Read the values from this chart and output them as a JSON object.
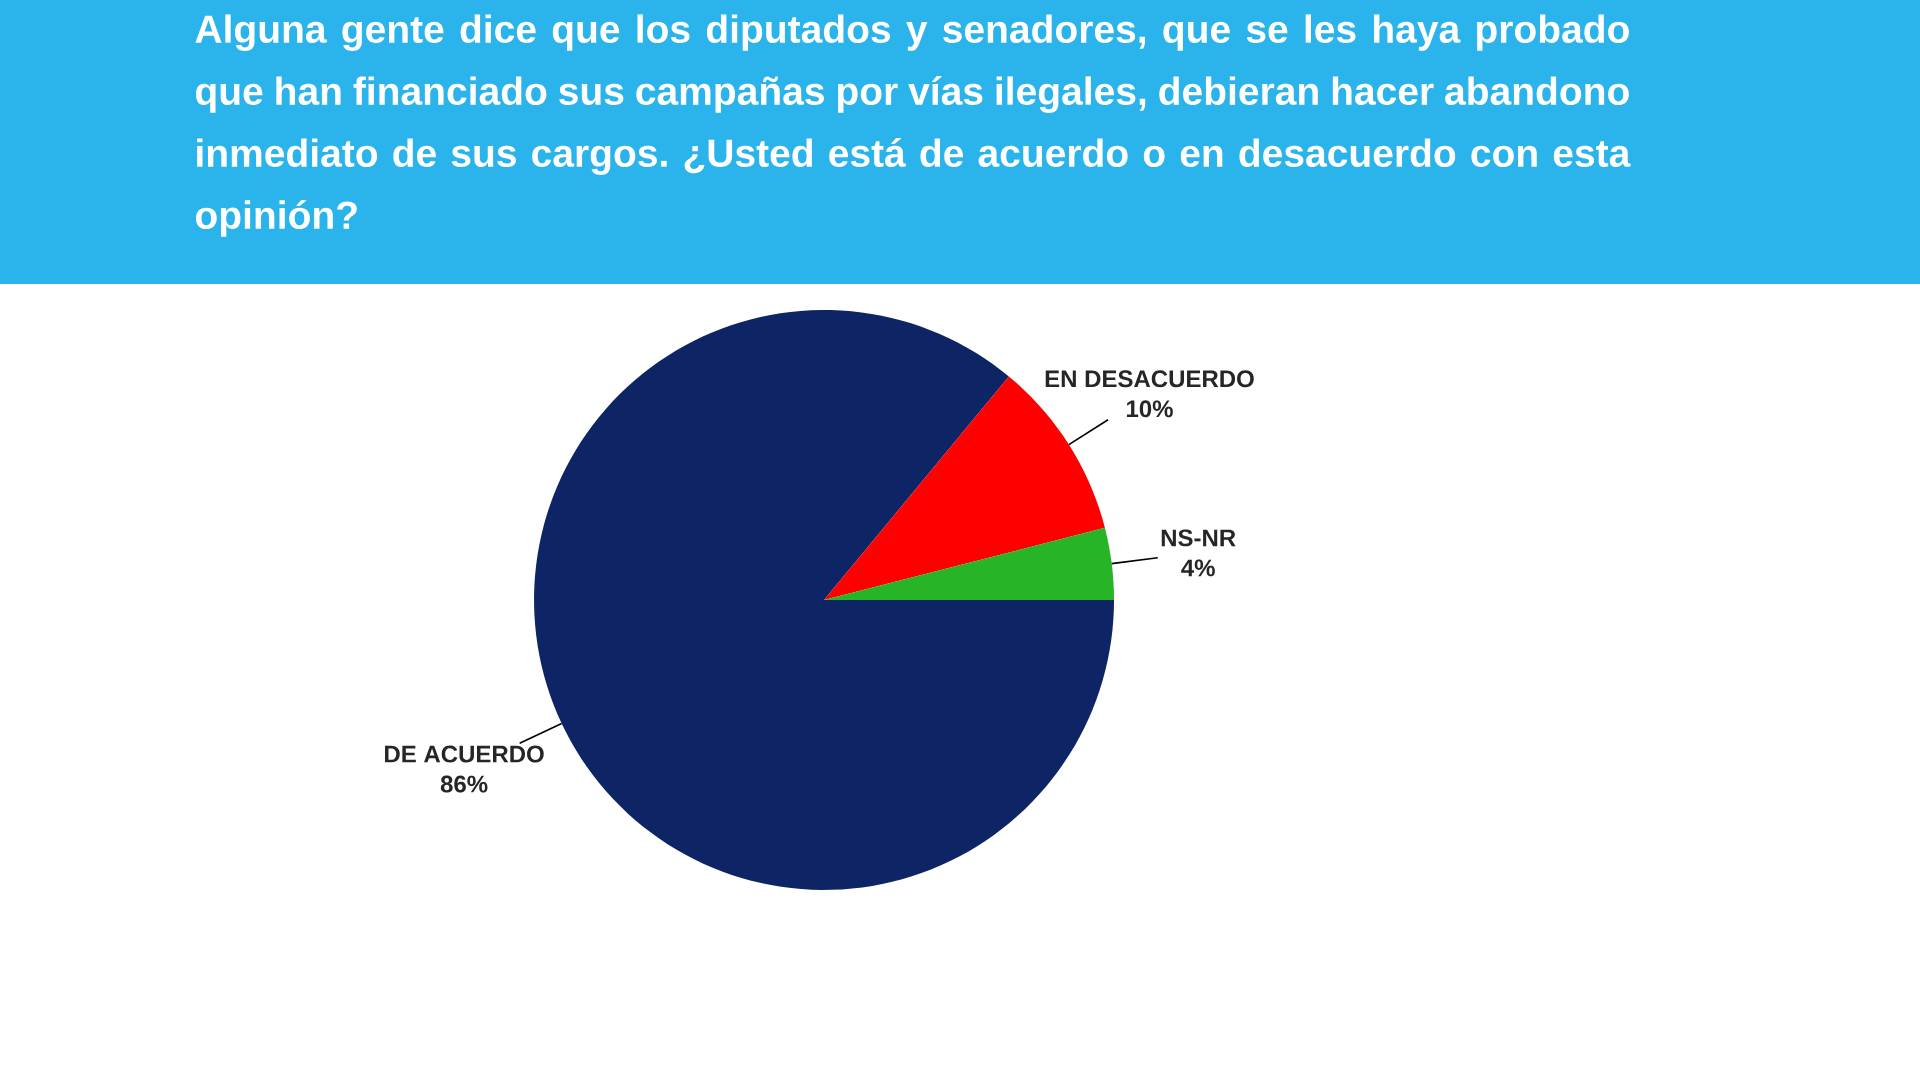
{
  "chart_data": {
    "type": "pie",
    "title": "Alguna gente dice que los diputados y senadores, que se les haya probado que han financiado sus campañas por vías ilegales, debieran hacer abandono inmediato de sus cargos. ¿Usted está de acuerdo o en desacuerdo con esta opinión?",
    "categories": [
      "DE ACUERDO",
      "EN DESACUERDO",
      "NS-NR"
    ],
    "values": [
      86,
      10,
      4
    ],
    "value_labels": [
      "86%",
      "10%",
      "4%"
    ],
    "colors": [
      "#0e2565",
      "#fe0000",
      "#27b427"
    ]
  }
}
